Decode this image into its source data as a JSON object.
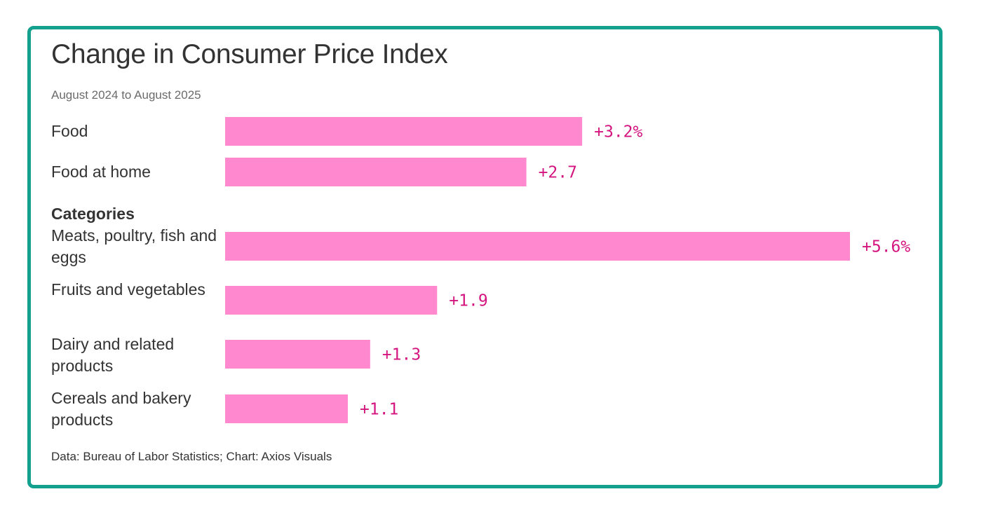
{
  "chart_data": {
    "type": "bar",
    "orientation": "horizontal",
    "title": "Change in Consumer Price Index",
    "subtitle": "August 2024 to August 2025",
    "section_label": "Categories",
    "categories": [
      "Food",
      "Food at home",
      "Meats, poultry, fish and eggs",
      "Fruits and vegetables",
      "Dairy and related products",
      "Cereals and bakery products"
    ],
    "values": [
      3.2,
      2.7,
      5.6,
      1.9,
      1.3,
      1.1
    ],
    "value_labels": [
      "+3.2%",
      "+2.7",
      "+5.6%",
      "+1.9",
      "+1.3",
      "+1.1"
    ],
    "xlim": [
      0,
      5.6
    ],
    "grid": false,
    "legend": "none",
    "colors": {
      "bar": "#ff88cf",
      "value_label": "#d4157f",
      "border": "#14a08e"
    }
  },
  "footnote": "Data: Bureau of Labor Statistics; Chart: Axios Visuals"
}
